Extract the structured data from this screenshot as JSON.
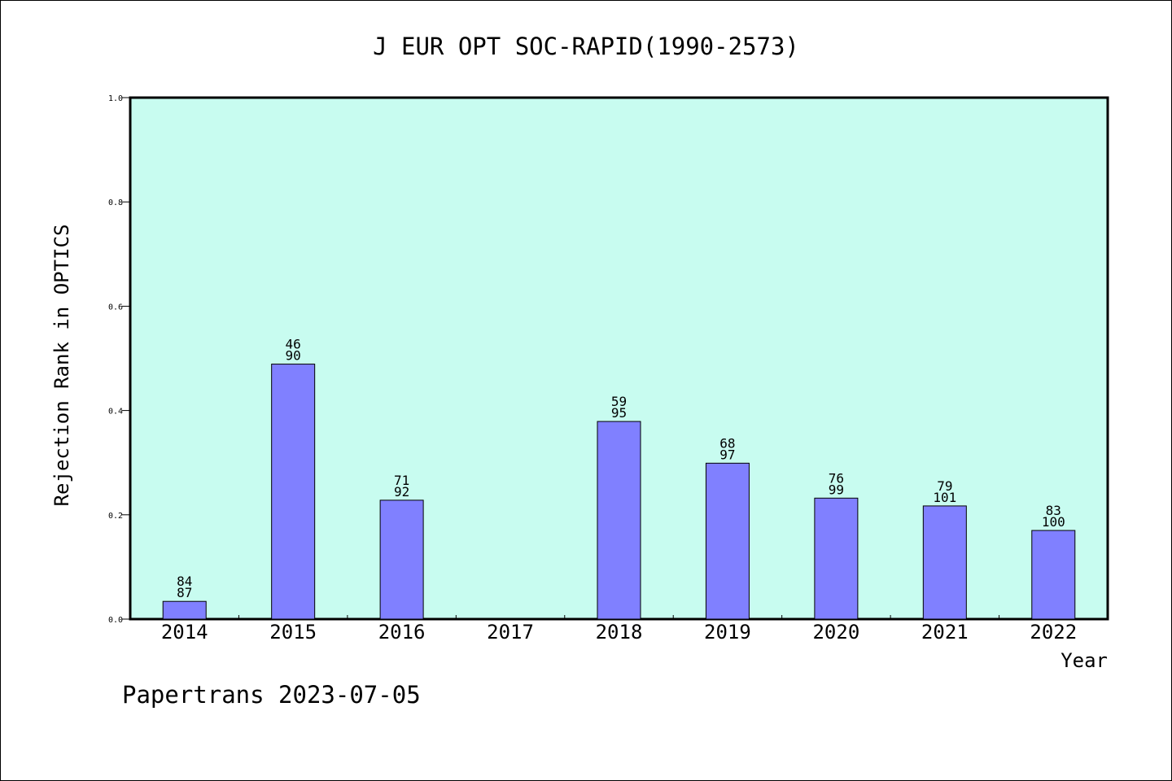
{
  "chart_data": {
    "type": "bar",
    "title": "J EUR OPT SOC-RAPID(1990-2573)",
    "xlabel": "Year",
    "ylabel": "Rejection Rank in OPTICS",
    "categories": [
      "2014",
      "2015",
      "2016",
      "2017",
      "2018",
      "2019",
      "2020",
      "2021",
      "2022"
    ],
    "values": [
      0.034,
      0.489,
      0.228,
      null,
      0.379,
      0.299,
      0.232,
      0.217,
      0.17
    ],
    "bar_labels": [
      [
        "84",
        "87"
      ],
      [
        "46",
        "90"
      ],
      [
        "71",
        "92"
      ],
      null,
      [
        "59",
        "95"
      ],
      [
        "68",
        "97"
      ],
      [
        "76",
        "99"
      ],
      [
        "79",
        "101"
      ],
      [
        "83",
        "100"
      ]
    ],
    "ylim": [
      0,
      1.0
    ],
    "yticks": [
      0.0,
      0.2,
      0.4,
      0.6,
      0.8,
      1.0
    ],
    "ytick_labels": [
      "0.0",
      "0.2",
      "0.4",
      "0.6",
      "0.8",
      "1.0"
    ],
    "grid": false,
    "colors": {
      "plot_background": "#c8fcf0",
      "bar_fill": "#8080ff",
      "bar_stroke": "#000000"
    }
  },
  "footer": {
    "credit": "Papertrans 2023-07-05"
  }
}
